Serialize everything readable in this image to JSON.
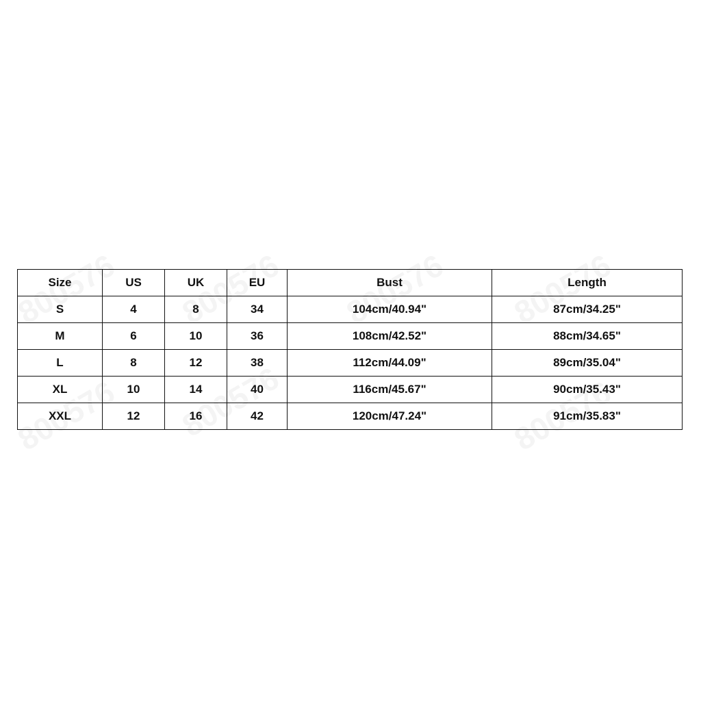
{
  "watermark": "800576",
  "table": {
    "headers": [
      "Size",
      "US",
      "UK",
      "EU",
      "Bust",
      "Length"
    ],
    "rows": [
      [
        "S",
        "4",
        "8",
        "34",
        "104cm/40.94\"",
        "87cm/34.25\""
      ],
      [
        "M",
        "6",
        "10",
        "36",
        "108cm/42.52\"",
        "88cm/34.65\""
      ],
      [
        "L",
        "8",
        "12",
        "38",
        "112cm/44.09\"",
        "89cm/35.04\""
      ],
      [
        "XL",
        "10",
        "14",
        "40",
        "116cm/45.67\"",
        "90cm/35.43\""
      ],
      [
        "XXL",
        "12",
        "16",
        "42",
        "120cm/47.24\"",
        "91cm/35.83\""
      ]
    ]
  }
}
